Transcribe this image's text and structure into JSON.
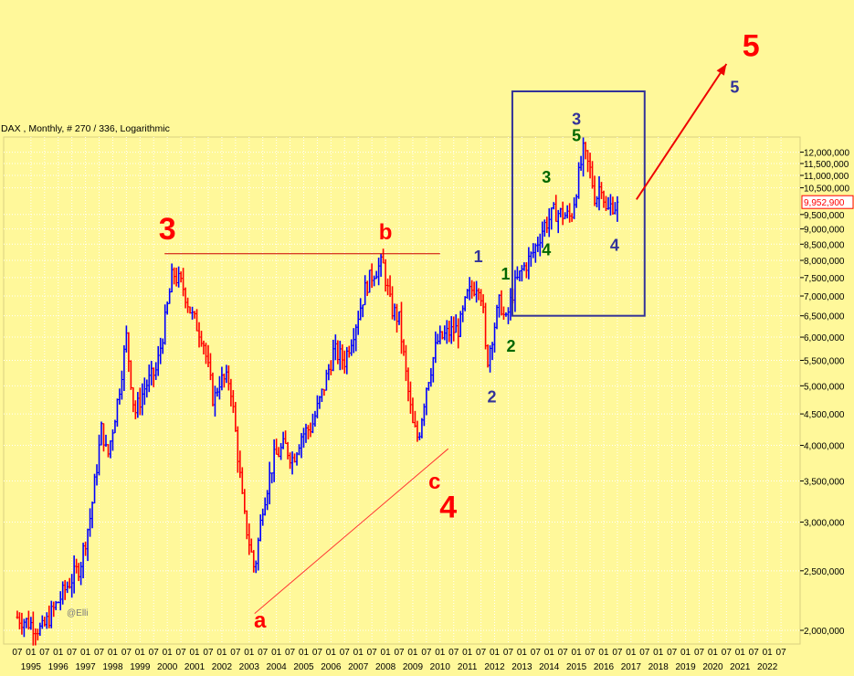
{
  "chart_data": {
    "type": "ohlc",
    "title": "DAX , Monthly, # 270 / 336, Logarithmic",
    "scale": "log",
    "ylim": [
      1900,
      12700
    ],
    "xlim": [
      1994.0,
      2023.2
    ],
    "current_value_label": "9,952,900",
    "current_value": 9952.9,
    "watermark": "@Elli",
    "y_ticks": [
      {
        "value": 12000,
        "label": "12,000,000"
      },
      {
        "value": 11500,
        "label": "11,500,000"
      },
      {
        "value": 11000,
        "label": "11,000,000"
      },
      {
        "value": 10500,
        "label": "10,500,000"
      },
      {
        "value": 9500,
        "label": "9,500,000"
      },
      {
        "value": 9000,
        "label": "9,000,000"
      },
      {
        "value": 8500,
        "label": "8,500,000"
      },
      {
        "value": 8000,
        "label": "8,000,000"
      },
      {
        "value": 7500,
        "label": "7,500,000"
      },
      {
        "value": 7000,
        "label": "7,000,000"
      },
      {
        "value": 6500,
        "label": "6,500,000"
      },
      {
        "value": 6000,
        "label": "6,000,000"
      },
      {
        "value": 5500,
        "label": "5,500,000"
      },
      {
        "value": 5000,
        "label": "5,000,000"
      },
      {
        "value": 4500,
        "label": "4,500,000"
      },
      {
        "value": 4000,
        "label": "4,000,000"
      },
      {
        "value": 3500,
        "label": "3,500,000"
      },
      {
        "value": 3000,
        "label": "3,000,000"
      },
      {
        "value": 2500,
        "label": "2,500,000"
      },
      {
        "value": 2000,
        "label": "2,000,000"
      }
    ],
    "x_years": [
      "1995",
      "1996",
      "1997",
      "1998",
      "1999",
      "2000",
      "2001",
      "2002",
      "2003",
      "2004",
      "2005",
      "2006",
      "2007",
      "2008",
      "2009",
      "2010",
      "2011",
      "2012",
      "2013",
      "2014",
      "2015",
      "2016",
      "2017",
      "2018",
      "2019",
      "2020",
      "2021",
      "2022"
    ],
    "x_month_labels": [
      "01",
      "07"
    ],
    "price_anchors": [
      [
        1994.5,
        2100
      ],
      [
        1995.0,
        2050
      ],
      [
        1995.4,
        2000
      ],
      [
        1995.8,
        2150
      ],
      [
        1996.3,
        2350
      ],
      [
        1996.8,
        2550
      ],
      [
        1997.2,
        3100
      ],
      [
        1997.6,
        4300
      ],
      [
        1997.8,
        3800
      ],
      [
        1998.2,
        4800
      ],
      [
        1998.5,
        6000
      ],
      [
        1998.8,
        4500
      ],
      [
        1999.2,
        5000
      ],
      [
        1999.6,
        5300
      ],
      [
        1999.9,
        6300
      ],
      [
        2000.2,
        7650
      ],
      [
        2000.6,
        7200
      ],
      [
        2000.9,
        6500
      ],
      [
        2001.3,
        6000
      ],
      [
        2001.7,
        4700
      ],
      [
        2001.9,
        5100
      ],
      [
        2002.3,
        5100
      ],
      [
        2002.6,
        3800
      ],
      [
        2002.8,
        3100
      ],
      [
        2003.2,
        2500
      ],
      [
        2003.5,
        3200
      ],
      [
        2003.9,
        3800
      ],
      [
        2004.3,
        4000
      ],
      [
        2004.6,
        3800
      ],
      [
        2004.9,
        4150
      ],
      [
        2005.3,
        4300
      ],
      [
        2005.7,
        4900
      ],
      [
        2006.1,
        5700
      ],
      [
        2006.5,
        5500
      ],
      [
        2006.9,
        6300
      ],
      [
        2007.3,
        7300
      ],
      [
        2007.6,
        7700
      ],
      [
        2007.9,
        7900
      ],
      [
        2008.2,
        6700
      ],
      [
        2008.5,
        6400
      ],
      [
        2008.8,
        5000
      ],
      [
        2009.0,
        4300
      ],
      [
        2009.2,
        4100
      ],
      [
        2009.5,
        5000
      ],
      [
        2009.9,
        5900
      ],
      [
        2010.3,
        6100
      ],
      [
        2010.7,
        6200
      ],
      [
        2011.0,
        7000
      ],
      [
        2011.4,
        7400
      ],
      [
        2011.55,
        6900
      ],
      [
        2011.7,
        5400
      ],
      [
        2011.9,
        6000
      ],
      [
        2012.2,
        6900
      ],
      [
        2012.4,
        6300
      ],
      [
        2012.7,
        7200
      ],
      [
        2013.0,
        7700
      ],
      [
        2013.4,
        8200
      ],
      [
        2013.8,
        9100
      ],
      [
        2014.2,
        9600
      ],
      [
        2014.5,
        9500
      ],
      [
        2014.8,
        9400
      ],
      [
        2015.0,
        10500
      ],
      [
        2015.25,
        12000
      ],
      [
        2015.5,
        11200
      ],
      [
        2015.7,
        10000
      ],
      [
        2015.9,
        10800
      ],
      [
        2016.1,
        9500
      ],
      [
        2016.3,
        9900
      ],
      [
        2016.45,
        9800
      ],
      [
        2016.5,
        9953
      ]
    ],
    "annotations": [
      {
        "text": "3",
        "x": 2000.0,
        "y": 8650,
        "color": "#FF0000",
        "size": "xl"
      },
      {
        "text": "b",
        "x": 2008.0,
        "y": 8650,
        "color": "#FF0000",
        "size": "l"
      },
      {
        "text": "a",
        "x": 2003.4,
        "y": 2020,
        "color": "#FF0000",
        "size": "l"
      },
      {
        "text": "c",
        "x": 2009.8,
        "y": 3400,
        "color": "#FF0000",
        "size": "l"
      },
      {
        "text": "4",
        "x": 2010.3,
        "y": 3050,
        "color": "#FF0000",
        "size": "xl"
      },
      {
        "text": "5",
        "x": 2021.4,
        "y": 17200,
        "color": "#FF0000",
        "size": "xl"
      },
      {
        "text": "5",
        "x": 2020.8,
        "y": 15000,
        "color": "#333399",
        "size": "m"
      },
      {
        "text": "3",
        "x": 2015.0,
        "y": 13300,
        "color": "#333399",
        "size": "m"
      },
      {
        "text": "5",
        "x": 2015.0,
        "y": 12500,
        "color": "#006600",
        "size": "m"
      },
      {
        "text": "3",
        "x": 2013.9,
        "y": 10700,
        "color": "#006600",
        "size": "m"
      },
      {
        "text": "4",
        "x": 2013.9,
        "y": 8150,
        "color": "#006600",
        "size": "m"
      },
      {
        "text": "4",
        "x": 2016.4,
        "y": 8300,
        "color": "#333399",
        "size": "m"
      },
      {
        "text": "1",
        "x": 2011.4,
        "y": 7950,
        "color": "#333399",
        "size": "m"
      },
      {
        "text": "1",
        "x": 2012.4,
        "y": 7450,
        "color": "#006600",
        "size": "m"
      },
      {
        "text": "2",
        "x": 2012.6,
        "y": 5680,
        "color": "#006600",
        "size": "m"
      },
      {
        "text": "2",
        "x": 2011.9,
        "y": 4700,
        "color": "#333399",
        "size": "m"
      }
    ]
  }
}
